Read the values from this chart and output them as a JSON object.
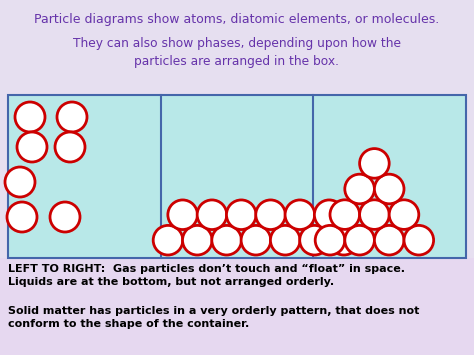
{
  "bg_top": "#e6dff0",
  "bg_box": "#b8e8e8",
  "bg_bottom": "#e6d8f0",
  "box_border": "#4466aa",
  "circle_edge": "#cc0000",
  "circle_fill": "white",
  "title1": "Particle diagrams show atoms, diatomic elements, or molecules.",
  "title2": "They can also show phases, depending upon how the\nparticles are arranged in the box.",
  "caption1": "LEFT TO RIGHT:  Gas particles don’t touch and “float” in space.\nLiquids are at the bottom, but not arranged orderly.",
  "caption2": "Solid matter has particles in a very orderly pattern, that does not\nconform to the shape of the container.",
  "title_color": "#6633aa",
  "caption_color": "#000000",
  "fig_w": 4.74,
  "fig_h": 3.55,
  "dpi": 100
}
